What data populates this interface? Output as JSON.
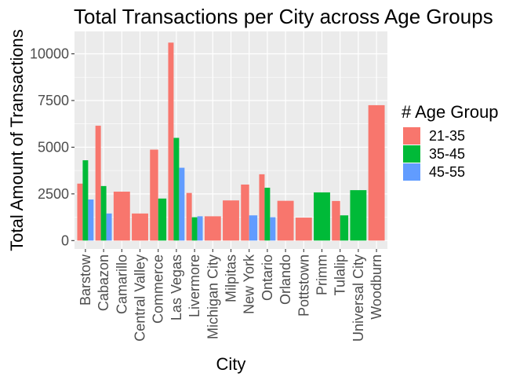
{
  "chart_data": {
    "type": "bar",
    "title": "Total Transactions  per City across Age Groups",
    "xlabel": "City",
    "ylabel": "Total Amount of Transactions",
    "ylim": [
      -450,
      11200
    ],
    "yticks": [
      0,
      2500,
      5000,
      7500,
      10000
    ],
    "ytick_labels": [
      "0",
      "2500",
      "5000",
      "7500",
      "10000"
    ],
    "grid": true,
    "legend": {
      "title": "# Age Group",
      "position": "right"
    },
    "categories": [
      "Barstow",
      "Cabazon",
      "Camarillo",
      "Central Valley",
      "Commerce",
      "Las Vegas",
      "Livermore",
      "Michigan City",
      "Milpitas",
      "New York",
      "Ontario",
      "Orlando",
      "Pottstown",
      "Primm",
      "Tulalip",
      "Universal City",
      "Woodburn"
    ],
    "series": [
      {
        "name": "21-35",
        "color": "#F8766D",
        "values": [
          3050,
          6150,
          2620,
          1450,
          4870,
          10600,
          2550,
          1300,
          2150,
          3000,
          3550,
          2130,
          1230,
          null,
          2120,
          null,
          7250
        ]
      },
      {
        "name": "35-45",
        "color": "#00BA38",
        "values": [
          4300,
          2920,
          null,
          null,
          2250,
          5500,
          1250,
          null,
          null,
          null,
          2830,
          null,
          null,
          2580,
          1350,
          2700,
          null
        ]
      },
      {
        "name": "45-55",
        "color": "#619CFF",
        "values": [
          2200,
          1450,
          null,
          null,
          null,
          3900,
          1300,
          null,
          null,
          1350,
          1250,
          null,
          null,
          null,
          null,
          null,
          null
        ]
      }
    ]
  }
}
